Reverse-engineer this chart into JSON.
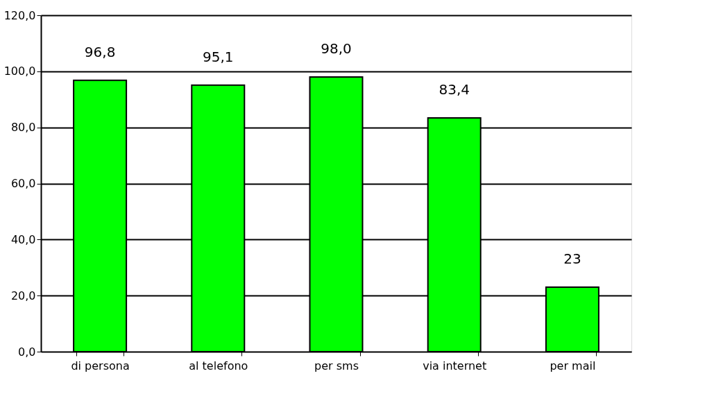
{
  "chart_data": {
    "type": "bar",
    "categories": [
      "di persona",
      "al telefono",
      "per sms",
      "via internet",
      "per mail"
    ],
    "values": [
      96.8,
      95.1,
      98.0,
      83.4,
      23
    ],
    "value_labels": [
      "96,8",
      "95,1",
      "98,0",
      "83,4",
      "23"
    ],
    "color": "#00ff00",
    "ylim": [
      0,
      120
    ],
    "yticks": [
      {
        "value": 0,
        "label": "0,0"
      },
      {
        "value": 20,
        "label": "20,0"
      },
      {
        "value": 40,
        "label": "40,0"
      },
      {
        "value": 60,
        "label": "60,0"
      },
      {
        "value": 80,
        "label": "80,0"
      },
      {
        "value": 100,
        "label": "100,0"
      },
      {
        "value": 120,
        "label": "120,0"
      }
    ],
    "grid": "y"
  }
}
